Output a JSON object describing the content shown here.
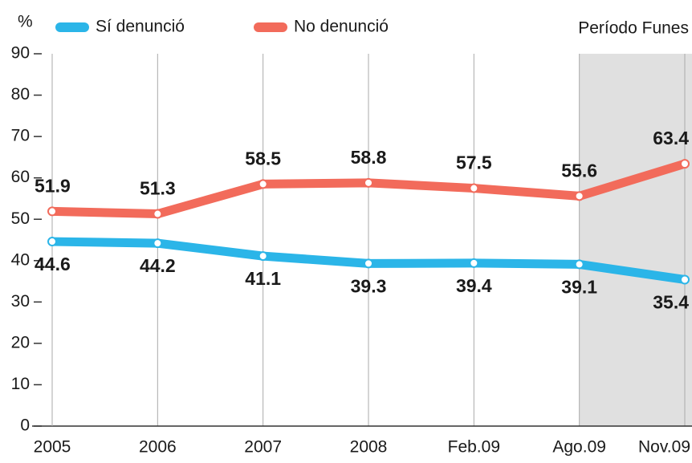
{
  "chart_data": {
    "type": "line",
    "y_label": "%",
    "categories": [
      "2005",
      "2006",
      "2007",
      "2008",
      "Feb.09",
      "Ago.09",
      "Nov.09"
    ],
    "series": [
      {
        "name": "Sí denunció",
        "color": "#2bb5e8",
        "values": [
          44.6,
          44.2,
          41.1,
          39.3,
          39.4,
          39.1,
          35.4
        ]
      },
      {
        "name": "No denunció",
        "color": "#f26b5b",
        "values": [
          51.9,
          51.3,
          58.5,
          58.8,
          57.5,
          55.6,
          63.4
        ]
      }
    ],
    "ylim": [
      0,
      90
    ],
    "yticks": [
      0,
      10,
      20,
      30,
      40,
      50,
      60,
      70,
      80,
      90
    ],
    "highlight": {
      "label": "Período Funes",
      "from": 5,
      "color": "#e0e0e0"
    },
    "grid": true
  }
}
